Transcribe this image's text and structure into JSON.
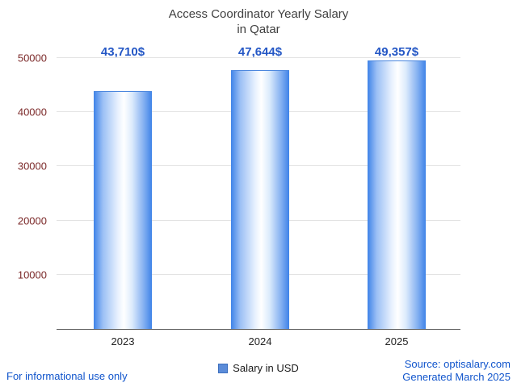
{
  "title": {
    "line1": "Access Coordinator Yearly Salary",
    "line2": "in Qatar"
  },
  "chart_data": {
    "type": "bar",
    "title": "Access Coordinator Yearly Salary in Qatar",
    "categories": [
      "2023",
      "2024",
      "2025"
    ],
    "values": [
      43710,
      47644,
      49357
    ],
    "value_labels": [
      "43,710$",
      "47,644$",
      "49,357$"
    ],
    "series": [
      {
        "name": "Salary in USD",
        "values": [
          43710,
          47644,
          49357
        ]
      }
    ],
    "xlabel": "",
    "ylabel": "",
    "ylim": [
      0,
      50000
    ],
    "yticks": [
      10000,
      20000,
      30000,
      40000,
      50000
    ],
    "grid": true,
    "legend_position": "bottom",
    "bar_centers_pct": [
      16.4,
      50.4,
      84.2
    ],
    "colors": {
      "bar_main": "#3f83e8",
      "legend_swatch": "#5b8cd9",
      "value_label": "#2457c5",
      "axis_tick_text": "#7c2a2a",
      "link": "#1155cc"
    }
  },
  "legend": {
    "label": "Salary in USD"
  },
  "footer": {
    "left": "For informational use only",
    "source": "Source: optisalary.com",
    "generated": "Generated March 2025"
  }
}
